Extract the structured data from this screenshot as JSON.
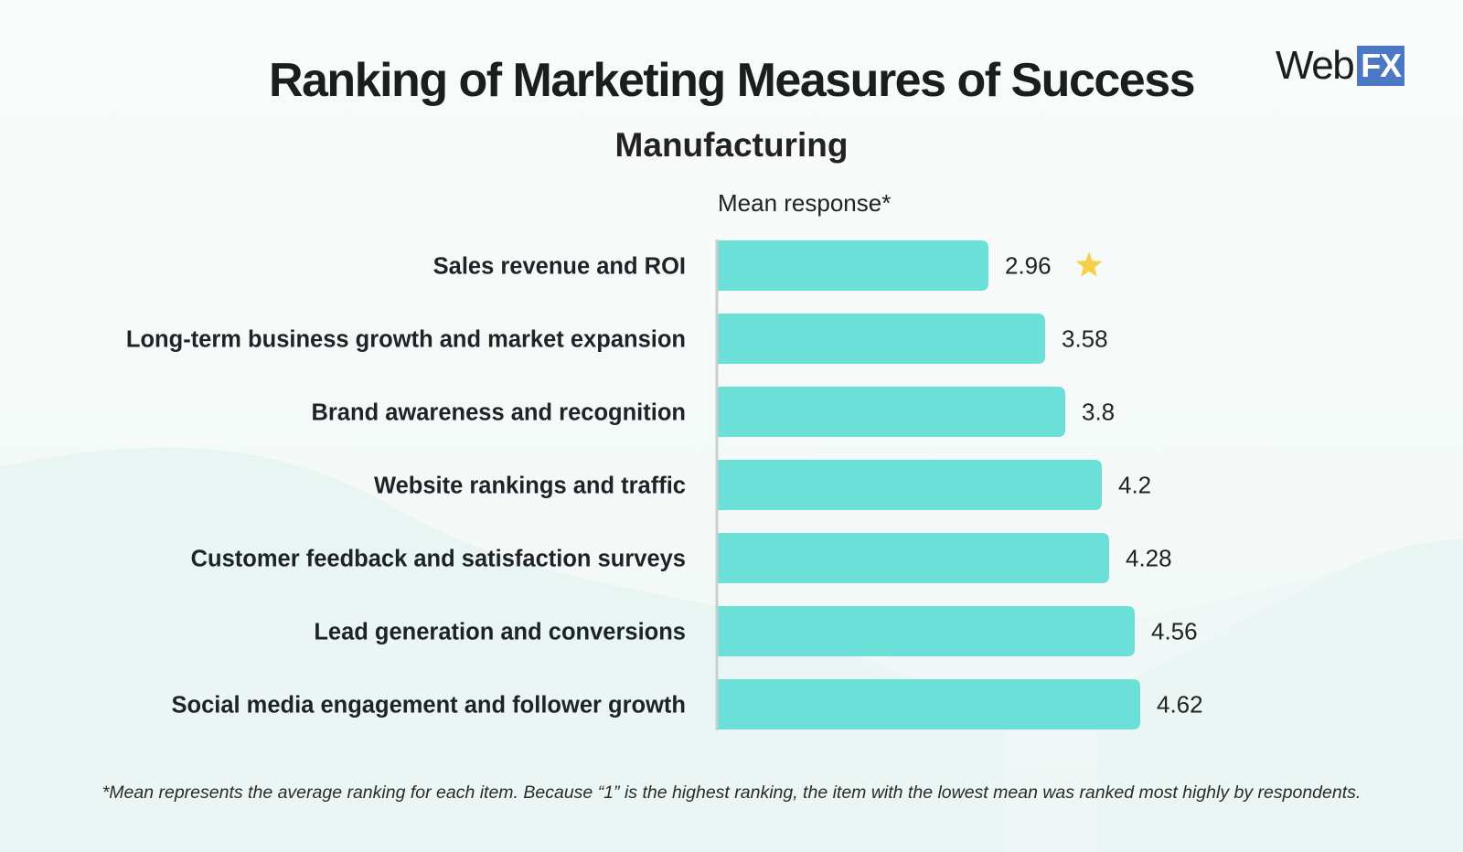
{
  "header": {
    "title": "Ranking of Marketing Measures of Success",
    "subtitle": "Manufacturing"
  },
  "logo": {
    "text_web": "Web",
    "text_fx": "FX",
    "accent_color": "#4a78c4"
  },
  "footnote": "*Mean represents the average ranking for each item. Because “1” is the highest ranking, the item with the lowest mean was ranked most highly by respondents.",
  "chart_data": {
    "type": "bar",
    "orientation": "horizontal",
    "title": "Ranking of Marketing Measures of Success",
    "subtitle": "Manufacturing",
    "xlabel": "Mean response*",
    "ylabel": "",
    "categories": [
      "Sales revenue and ROI",
      "Long-term business growth and market expansion",
      "Brand awareness and recognition",
      "Website rankings and traffic",
      "Customer feedback and satisfaction surveys",
      "Lead generation and conversions",
      "Social media engagement and follower growth"
    ],
    "values": [
      2.96,
      3.58,
      3.8,
      4.2,
      4.28,
      4.56,
      4.62
    ],
    "value_labels": [
      "2.96",
      "3.58",
      "3.8",
      "4.2",
      "4.28",
      "4.56",
      "4.62"
    ],
    "highlight_index": 0,
    "highlight_icon": "star-icon",
    "xlim": [
      0,
      4.62
    ],
    "grid": false,
    "legend": "none",
    "bar_color": "#6be0d8",
    "axis_color": "#c9ced0",
    "star_color": "#f7d04a"
  }
}
